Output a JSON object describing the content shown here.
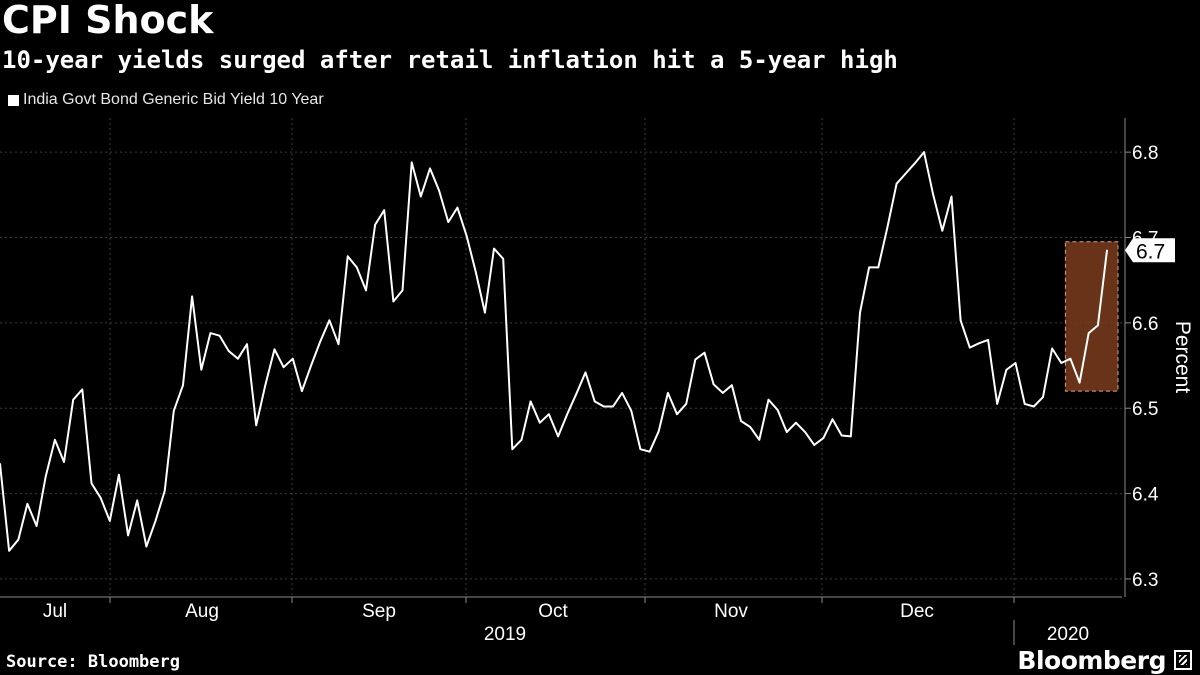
{
  "title": "CPI Shock",
  "subtitle": "10-year yields surged after retail inflation hit a 5-year high",
  "source": "Source: Bloomberg",
  "brand": "Bloomberg",
  "colors": {
    "background": "#000000",
    "line": "#ffffff",
    "highlight": "#7a3c1c",
    "highlight_border": "#d9a27c",
    "grid": "#444444"
  },
  "chart_data": {
    "type": "line",
    "title": "CPI Shock",
    "subtitle": "10-year yields surged after retail inflation hit a 5-year high",
    "legend": [
      "India Govt Bond Generic Bid Yield 10 Year"
    ],
    "legend_position": "top-left",
    "ylabel": "Percent",
    "ylim": [
      6.28,
      6.84
    ],
    "yticks": [
      6.3,
      6.4,
      6.5,
      6.6,
      6.7,
      6.8
    ],
    "ytick_labels": [
      "6.3",
      "6.4",
      "6.5",
      "6.6",
      "6.7",
      "6.8"
    ],
    "month_labels": [
      "Jul",
      "Aug",
      "Sep",
      "Oct",
      "Nov",
      "Dec"
    ],
    "year_labels": [
      "2019",
      "2020"
    ],
    "last_value_label": "6.7",
    "highlight": {
      "from_index": 117,
      "to_index": 121,
      "y_range": [
        6.52,
        6.695
      ]
    },
    "series": [
      {
        "name": "India Govt Bond Generic Bid Yield 10 Year",
        "values": [
          6.435,
          6.333,
          6.346,
          6.388,
          6.362,
          6.42,
          6.463,
          6.437,
          6.51,
          6.522,
          6.412,
          6.395,
          6.368,
          6.422,
          6.351,
          6.392,
          6.338,
          6.368,
          6.403,
          6.497,
          6.527,
          6.631,
          6.545,
          6.588,
          6.585,
          6.567,
          6.558,
          6.575,
          6.48,
          6.527,
          6.569,
          6.548,
          6.558,
          6.52,
          6.55,
          6.578,
          6.603,
          6.575,
          6.678,
          6.665,
          6.638,
          6.715,
          6.732,
          6.625,
          6.638,
          6.788,
          6.748,
          6.781,
          6.755,
          6.718,
          6.735,
          6.702,
          6.66,
          6.612,
          6.687,
          6.675,
          6.452,
          6.463,
          6.508,
          6.483,
          6.493,
          6.467,
          6.493,
          6.517,
          6.542,
          6.508,
          6.502,
          6.502,
          6.518,
          6.497,
          6.452,
          6.449,
          6.473,
          6.518,
          6.493,
          6.505,
          6.557,
          6.565,
          6.528,
          6.518,
          6.527,
          6.485,
          6.478,
          6.463,
          6.51,
          6.498,
          6.472,
          6.483,
          6.472,
          6.457,
          6.465,
          6.487,
          6.468,
          6.467,
          6.612,
          6.665,
          6.665,
          6.712,
          6.763,
          6.775,
          6.787,
          6.8,
          6.75,
          6.708,
          6.748,
          6.603,
          6.571,
          6.576,
          6.58,
          6.505,
          6.545,
          6.553,
          6.505,
          6.502,
          6.513,
          6.57,
          6.553,
          6.558,
          6.53,
          6.588,
          6.597,
          6.685
        ]
      }
    ]
  }
}
